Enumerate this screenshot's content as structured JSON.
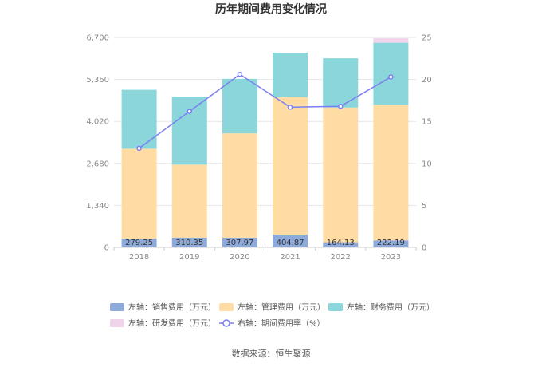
{
  "chart_data": {
    "type": "bar",
    "title": "历年期间费用变化情况",
    "categories": [
      "2018",
      "2019",
      "2020",
      "2021",
      "2022",
      "2023"
    ],
    "stacked": true,
    "series": [
      {
        "name": "左轴：销售费用（万元）",
        "axis": "left",
        "color": "#8eaadb",
        "values": [
          279.25,
          310.35,
          307.97,
          404.87,
          164.13,
          222.19
        ],
        "labels": [
          "279.25",
          "310.35",
          "307.97",
          "404.87",
          "164.13",
          "222.19"
        ]
      },
      {
        "name": "左轴：管理费用（万元）",
        "axis": "left",
        "color": "#ffdca3",
        "values": [
          2870,
          2330,
          3330,
          4390,
          4300,
          4330
        ]
      },
      {
        "name": "左轴：财务费用（万元）",
        "axis": "left",
        "color": "#8ad6da",
        "values": [
          1880,
          2170,
          1740,
          1420,
          1570,
          1980
        ]
      },
      {
        "name": "左轴：研发费用（万元）",
        "axis": "left",
        "color": "#f0d5ea",
        "values": [
          0,
          0,
          0,
          0,
          0,
          140
        ]
      },
      {
        "name": "右轴：期间费用率（%）",
        "axis": "right",
        "type": "line",
        "color": "#7b7ff0",
        "values": [
          11.8,
          16.2,
          20.6,
          16.7,
          16.8,
          20.3
        ]
      }
    ],
    "y_left": {
      "ylim": [
        0,
        6700
      ],
      "ticks": [
        0,
        1340,
        2680,
        4020,
        5360,
        6700
      ],
      "tick_labels": [
        "0",
        "1,340",
        "2,680",
        "4,020",
        "5,360",
        "6,700"
      ]
    },
    "y_right": {
      "ylim": [
        0,
        25
      ],
      "ticks": [
        0,
        5,
        10,
        15,
        20,
        25
      ],
      "tick_labels": [
        "0",
        "5",
        "10",
        "15",
        "20",
        "25"
      ]
    },
    "grid": true,
    "legend_position": "bottom"
  },
  "footer": {
    "source": "数据来源：恒生聚源"
  }
}
